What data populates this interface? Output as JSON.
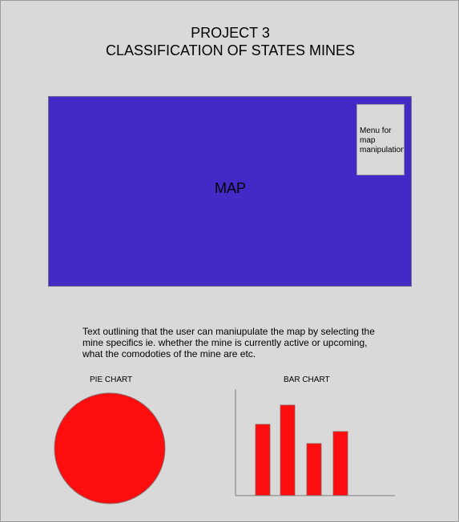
{
  "header": {
    "title_line1": "PROJECT 3",
    "title_line2": "CLASSIFICATION OF STATES MINES"
  },
  "map": {
    "label": "MAP",
    "menu_text": "Menu for\nmap\nmanipulation",
    "color": "#432ac6"
  },
  "description": "Text outlining that the user can maniupulate the map by selecting the mine specifics ie. whether the mine is currently active or upcoming, what the comodoties of the mine are etc.",
  "pie_chart": {
    "title": "PIE CHART"
  },
  "bar_chart": {
    "title": "BAR CHART"
  },
  "chart_data": [
    {
      "type": "pie",
      "title": "PIE CHART",
      "values": [
        1
      ],
      "color": "#fd0d0d"
    },
    {
      "type": "bar",
      "title": "BAR CHART",
      "values": [
        89,
        113,
        65,
        80
      ],
      "ylim": [
        0,
        133
      ],
      "color": "#fd0d0d"
    }
  ]
}
